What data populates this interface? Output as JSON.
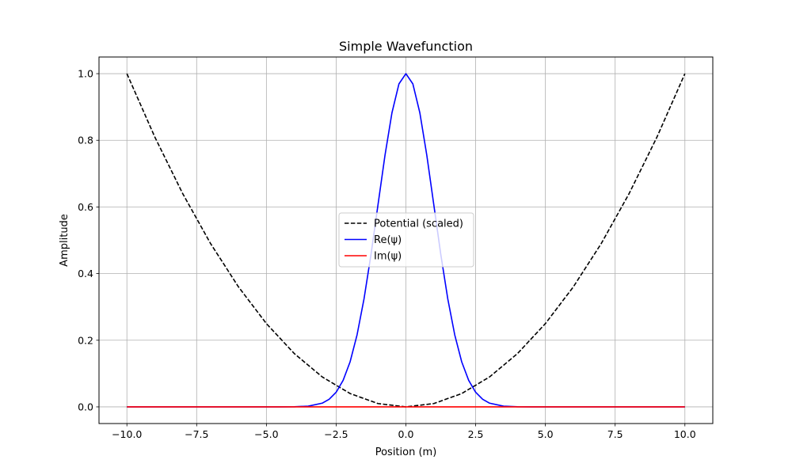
{
  "chart_data": {
    "type": "line",
    "title": "Simple Wavefunction",
    "xlabel": "Position (m)",
    "ylabel": "Amplitude",
    "xlim": [
      -11,
      11
    ],
    "ylim": [
      -0.05,
      1.05
    ],
    "xticks": [
      -10.0,
      -7.5,
      -5.0,
      -2.5,
      0.0,
      2.5,
      5.0,
      7.5,
      10.0
    ],
    "xtick_labels": [
      "−10.0",
      "−7.5",
      "−5.0",
      "−2.5",
      "0.0",
      "2.5",
      "5.0",
      "7.5",
      "10.0"
    ],
    "yticks": [
      0.0,
      0.2,
      0.4,
      0.6,
      0.8,
      1.0
    ],
    "ytick_labels": [
      "0.0",
      "0.2",
      "0.4",
      "0.6",
      "0.8",
      "1.0"
    ],
    "grid": true,
    "legend_position": "center",
    "series": [
      {
        "name": "Potential (scaled)",
        "color": "#000000",
        "style": "dashed",
        "x": [
          -10,
          -9,
          -8,
          -7,
          -6,
          -5,
          -4,
          -3,
          -2,
          -1,
          0,
          1,
          2,
          3,
          4,
          5,
          6,
          7,
          8,
          9,
          10
        ],
        "y": [
          1.0,
          0.81,
          0.64,
          0.49,
          0.36,
          0.25,
          0.16,
          0.09,
          0.04,
          0.01,
          0.0,
          0.01,
          0.04,
          0.09,
          0.16,
          0.25,
          0.36,
          0.49,
          0.64,
          0.81,
          1.0
        ]
      },
      {
        "name": "Re(ψ)",
        "color": "#0000ff",
        "style": "solid",
        "x": [
          -10,
          -5,
          -4.5,
          -4,
          -3.5,
          -3,
          -2.75,
          -2.5,
          -2.25,
          -2,
          -1.75,
          -1.5,
          -1.25,
          -1,
          -0.75,
          -0.5,
          -0.25,
          0,
          0.25,
          0.5,
          0.75,
          1,
          1.25,
          1.5,
          1.75,
          2,
          2.25,
          2.5,
          2.75,
          3,
          3.5,
          4,
          4.5,
          5,
          10
        ],
        "y": [
          0.0,
          0.0,
          0.0,
          0.0003,
          0.0022,
          0.0111,
          0.0228,
          0.0439,
          0.0796,
          0.1353,
          0.2163,
          0.3247,
          0.4578,
          0.6065,
          0.7548,
          0.8825,
          0.9692,
          1.0,
          0.9692,
          0.8825,
          0.7548,
          0.6065,
          0.4578,
          0.3247,
          0.2163,
          0.1353,
          0.0796,
          0.0439,
          0.0228,
          0.0111,
          0.0022,
          0.0003,
          0.0,
          0.0,
          0.0
        ]
      },
      {
        "name": "Im(ψ)",
        "color": "#ff0000",
        "style": "solid",
        "x": [
          -10,
          10
        ],
        "y": [
          0.0,
          0.0
        ]
      }
    ]
  }
}
